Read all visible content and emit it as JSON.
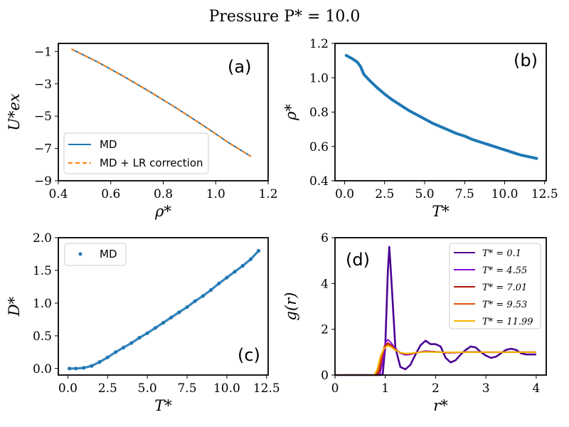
{
  "figure": {
    "suptitle": "Pressure P* = 10.0"
  },
  "colors": {
    "md": "#1f77b4",
    "lr": "#ff7f0e",
    "g_T0": "#4b0092",
    "g_T1": "#8a0ad8",
    "g_T2": "#b01c0a",
    "g_T3": "#e0520a",
    "g_T4": "#f2b400"
  },
  "chart_data": [
    {
      "id": "a",
      "type": "line",
      "panel_label": "(a)",
      "xlabel": "ρ*",
      "ylabel": "U*ex",
      "xlim": [
        0.4,
        1.2
      ],
      "ylim": [
        -9,
        -0.5
      ],
      "xticks": [
        0.4,
        0.6,
        0.8,
        1.0,
        1.2
      ],
      "xtick_labels": [
        "0.4",
        "0.6",
        "0.8",
        "1.0",
        "1.2"
      ],
      "yticks": [
        -9,
        -7,
        -5,
        -3,
        -1
      ],
      "ytick_labels": [
        "−9",
        "−7",
        "−5",
        "−3",
        "−1"
      ],
      "legend_position": "lower-left",
      "series": [
        {
          "name": "MD",
          "style": "solid",
          "color": "#1f77b4",
          "x": [
            0.45,
            0.55,
            0.65,
            0.75,
            0.85,
            0.95,
            1.05,
            1.135
          ],
          "y": [
            -0.85,
            -1.65,
            -2.55,
            -3.5,
            -4.5,
            -5.55,
            -6.65,
            -7.5
          ]
        },
        {
          "name": "MD + LR correction",
          "style": "dashed",
          "color": "#ff7f0e",
          "x": [
            0.45,
            0.55,
            0.65,
            0.75,
            0.85,
            0.95,
            1.05,
            1.135
          ],
          "y": [
            -0.85,
            -1.65,
            -2.55,
            -3.5,
            -4.5,
            -5.55,
            -6.65,
            -7.5
          ]
        }
      ]
    },
    {
      "id": "b",
      "type": "line",
      "panel_label": "(b)",
      "xlabel": "T*",
      "ylabel": "ρ*",
      "xlim": [
        -0.6,
        12.6
      ],
      "ylim": [
        0.4,
        1.2
      ],
      "xticks": [
        0,
        2.5,
        5,
        7.5,
        10,
        12.5
      ],
      "xtick_labels": [
        "0.0",
        "2.5",
        "5.0",
        "7.5",
        "10.0",
        "12.5"
      ],
      "yticks": [
        0.4,
        0.6,
        0.8,
        1.0,
        1.2
      ],
      "ytick_labels": [
        "0.4",
        "0.6",
        "0.8",
        "1.0",
        "1.2"
      ],
      "series": [
        {
          "color": "#1f77b4",
          "x": [
            0.1,
            0.5,
            0.8,
            1.0,
            1.2,
            1.5,
            2.0,
            2.5,
            3.0,
            3.5,
            4.0,
            4.5,
            5.0,
            5.5,
            6.0,
            6.5,
            7.0,
            7.5,
            8.0,
            8.5,
            9.0,
            9.5,
            10.0,
            10.5,
            11.0,
            11.5,
            12.0
          ],
          "y": [
            1.13,
            1.11,
            1.09,
            1.065,
            1.02,
            0.99,
            0.945,
            0.905,
            0.87,
            0.84,
            0.81,
            0.785,
            0.76,
            0.735,
            0.715,
            0.695,
            0.675,
            0.66,
            0.64,
            0.625,
            0.61,
            0.595,
            0.58,
            0.565,
            0.55,
            0.54,
            0.53
          ]
        }
      ]
    },
    {
      "id": "c",
      "type": "scatter",
      "panel_label": "(c)",
      "xlabel": "T*",
      "ylabel": "D*",
      "xlim": [
        -0.6,
        12.6
      ],
      "ylim": [
        -0.1,
        2.0
      ],
      "xticks": [
        0,
        2.5,
        5,
        7.5,
        10,
        12.5
      ],
      "xtick_labels": [
        "0.0",
        "2.5",
        "5.0",
        "7.5",
        "10.0",
        "12.5"
      ],
      "yticks": [
        0.0,
        0.5,
        1.0,
        1.5,
        2.0
      ],
      "ytick_labels": [
        "0.0",
        "0.5",
        "1.0",
        "1.5",
        "2.0"
      ],
      "legend_position": "upper-left",
      "series": [
        {
          "name": "MD",
          "color": "#1f77b4",
          "x": [
            0.1,
            0.5,
            1.0,
            1.5,
            2.0,
            2.5,
            3.0,
            3.5,
            4.0,
            4.5,
            5.0,
            5.5,
            6.0,
            6.5,
            7.0,
            7.5,
            8.0,
            8.5,
            9.0,
            9.5,
            10.0,
            10.5,
            11.0,
            11.5,
            12.0
          ],
          "y": [
            0.0,
            0.0,
            0.01,
            0.04,
            0.1,
            0.17,
            0.25,
            0.32,
            0.39,
            0.47,
            0.54,
            0.62,
            0.7,
            0.78,
            0.86,
            0.94,
            1.03,
            1.11,
            1.2,
            1.3,
            1.39,
            1.48,
            1.57,
            1.67,
            1.8
          ]
        }
      ]
    },
    {
      "id": "d",
      "type": "line",
      "panel_label": "(d)",
      "xlabel": "r*",
      "ylabel": "g(r)",
      "xlim": [
        0,
        4.2
      ],
      "ylim": [
        0,
        6
      ],
      "xticks": [
        0,
        1,
        2,
        3,
        4
      ],
      "xtick_labels": [
        "0",
        "1",
        "2",
        "3",
        "4"
      ],
      "yticks": [
        0,
        2,
        4,
        6
      ],
      "ytick_labels": [
        "0",
        "2",
        "4",
        "6"
      ],
      "legend_position": "upper-right",
      "series": [
        {
          "name": "T* = 0.1",
          "color": "#4b0092",
          "x": [
            0.0,
            0.9,
            0.95,
            1.0,
            1.05,
            1.08,
            1.12,
            1.2,
            1.3,
            1.4,
            1.5,
            1.6,
            1.7,
            1.8,
            1.9,
            2.0,
            2.1,
            2.2,
            2.3,
            2.4,
            2.5,
            2.6,
            2.7,
            2.8,
            2.9,
            3.0,
            3.1,
            3.2,
            3.3,
            3.4,
            3.5,
            3.6,
            3.7,
            3.8,
            3.9,
            4.0
          ],
          "y": [
            0.0,
            0.0,
            0.05,
            1.3,
            4.5,
            5.6,
            4.2,
            1.2,
            0.35,
            0.25,
            0.45,
            0.9,
            1.3,
            1.5,
            1.35,
            1.35,
            1.25,
            0.75,
            0.55,
            0.65,
            0.9,
            1.1,
            1.25,
            1.2,
            1.0,
            0.85,
            0.75,
            0.8,
            0.95,
            1.1,
            1.15,
            1.1,
            0.95,
            0.9,
            0.9,
            0.9
          ]
        },
        {
          "name": "T* = 4.55",
          "color": "#8a0ad8",
          "x": [
            0.0,
            0.85,
            0.9,
            0.95,
            1.0,
            1.05,
            1.1,
            1.2,
            1.3,
            1.4,
            1.5,
            1.6,
            1.8,
            2.0,
            2.2,
            2.4,
            2.6,
            2.8,
            3.0,
            3.2,
            3.4,
            3.6,
            3.8,
            4.0
          ],
          "y": [
            0.0,
            0.0,
            0.1,
            0.6,
            1.4,
            1.55,
            1.45,
            1.15,
            0.95,
            0.88,
            0.9,
            0.97,
            1.05,
            1.02,
            0.97,
            0.98,
            1.01,
            1.01,
            0.99,
            0.99,
            1.0,
            1.0,
            1.0,
            1.0
          ]
        },
        {
          "name": "T* = 7.01",
          "color": "#b01c0a",
          "x": [
            0.0,
            0.82,
            0.88,
            0.93,
            0.98,
            1.05,
            1.12,
            1.2,
            1.3,
            1.4,
            1.5,
            1.6,
            1.8,
            2.0,
            2.2,
            2.4,
            2.6,
            2.8,
            3.0,
            3.2,
            3.4,
            3.6,
            3.8,
            4.0
          ],
          "y": [
            0.0,
            0.0,
            0.15,
            0.7,
            1.25,
            1.4,
            1.3,
            1.12,
            0.97,
            0.92,
            0.93,
            0.97,
            1.03,
            1.01,
            0.98,
            0.99,
            1.0,
            1.0,
            1.0,
            1.0,
            1.0,
            1.0,
            1.0,
            1.0
          ]
        },
        {
          "name": "T* = 9.53",
          "color": "#e0520a",
          "x": [
            0.0,
            0.8,
            0.86,
            0.92,
            0.98,
            1.05,
            1.12,
            1.2,
            1.3,
            1.4,
            1.5,
            1.6,
            1.8,
            2.0,
            2.2,
            2.4,
            2.6,
            2.8,
            3.0,
            3.2,
            3.4,
            3.6,
            3.8,
            4.0
          ],
          "y": [
            0.0,
            0.0,
            0.2,
            0.75,
            1.2,
            1.33,
            1.25,
            1.1,
            0.98,
            0.93,
            0.94,
            0.97,
            1.02,
            1.01,
            0.99,
            0.99,
            1.0,
            1.0,
            1.0,
            1.0,
            1.0,
            1.0,
            1.0,
            1.0
          ]
        },
        {
          "name": "T* = 11.99",
          "color": "#f2b400",
          "x": [
            0.0,
            0.78,
            0.84,
            0.9,
            0.97,
            1.05,
            1.12,
            1.2,
            1.3,
            1.4,
            1.5,
            1.6,
            1.8,
            2.0,
            2.2,
            2.4,
            2.6,
            2.8,
            3.0,
            3.2,
            3.4,
            3.6,
            3.8,
            4.0
          ],
          "y": [
            0.0,
            0.0,
            0.25,
            0.8,
            1.15,
            1.28,
            1.22,
            1.08,
            0.98,
            0.94,
            0.95,
            0.98,
            1.01,
            1.0,
            0.99,
            1.0,
            1.0,
            1.0,
            1.0,
            1.0,
            1.0,
            1.0,
            1.0,
            1.0
          ]
        }
      ]
    }
  ]
}
